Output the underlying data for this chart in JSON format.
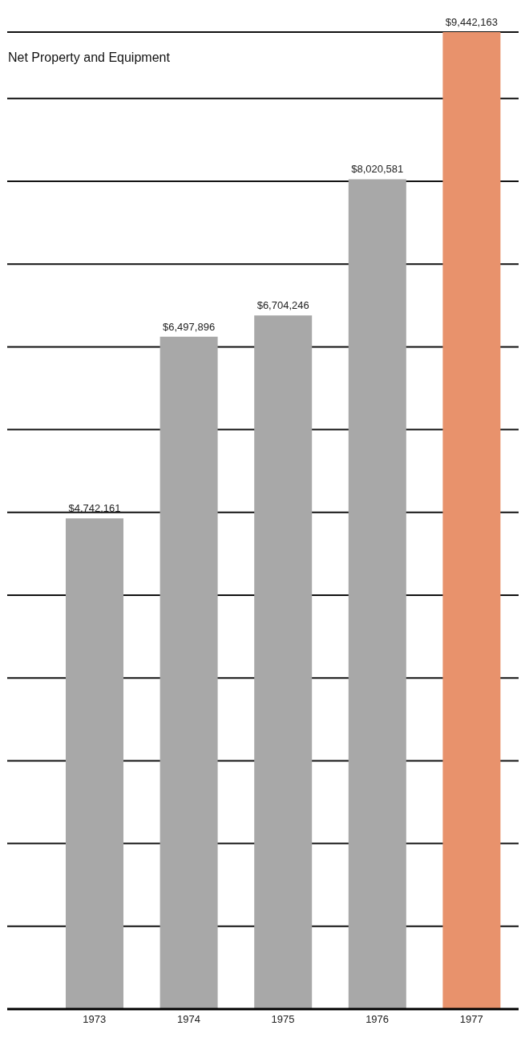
{
  "chart_data": {
    "type": "bar",
    "title": "Net Property and Equipment",
    "categories": [
      "1973",
      "1974",
      "1975",
      "1976",
      "1977"
    ],
    "values": [
      4742161,
      6497896,
      6704246,
      8020581,
      9442163
    ],
    "colors": [
      "#a8a8a8",
      "#a8a8a8",
      "#a8a8a8",
      "#a8a8a8",
      "#e8926c"
    ],
    "value_labels": [
      "$4,742,161",
      "$6,497,896",
      "$6,704,246",
      "$8,020,581",
      "$9,442,163"
    ],
    "ylim": [
      0,
      9442163
    ],
    "grid": "y",
    "tick_labels": "x"
  }
}
